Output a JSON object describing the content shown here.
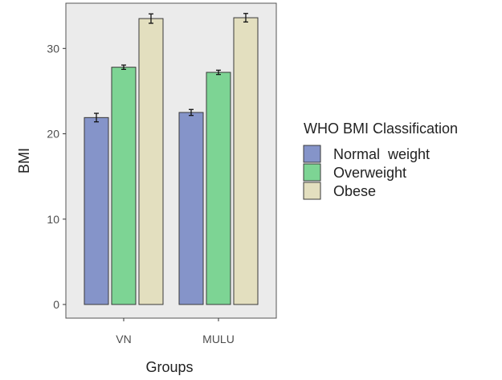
{
  "chart_data": {
    "type": "bar",
    "categories": [
      "VN",
      "MULU"
    ],
    "series": [
      {
        "name": "Normal  weight",
        "values": [
          21.9,
          22.5
        ],
        "errors": [
          0.5,
          0.35
        ],
        "color": "#8594c9"
      },
      {
        "name": "Overweight",
        "values": [
          27.8,
          27.2
        ],
        "errors": [
          0.25,
          0.25
        ],
        "color": "#7dd494"
      },
      {
        "name": "Obese",
        "values": [
          33.5,
          33.6
        ],
        "errors": [
          0.55,
          0.5
        ],
        "color": "#e3dfbf"
      }
    ],
    "xlabel": "Groups",
    "ylabel": "BMI",
    "ylim": [
      -1.6,
      35.3
    ],
    "yticks": [
      0,
      10,
      20,
      30
    ],
    "legend_title": "WHO BMI Classification",
    "legend_position": "right",
    "panel_background": "#ebebeb",
    "grid": false,
    "error_bars": true
  }
}
